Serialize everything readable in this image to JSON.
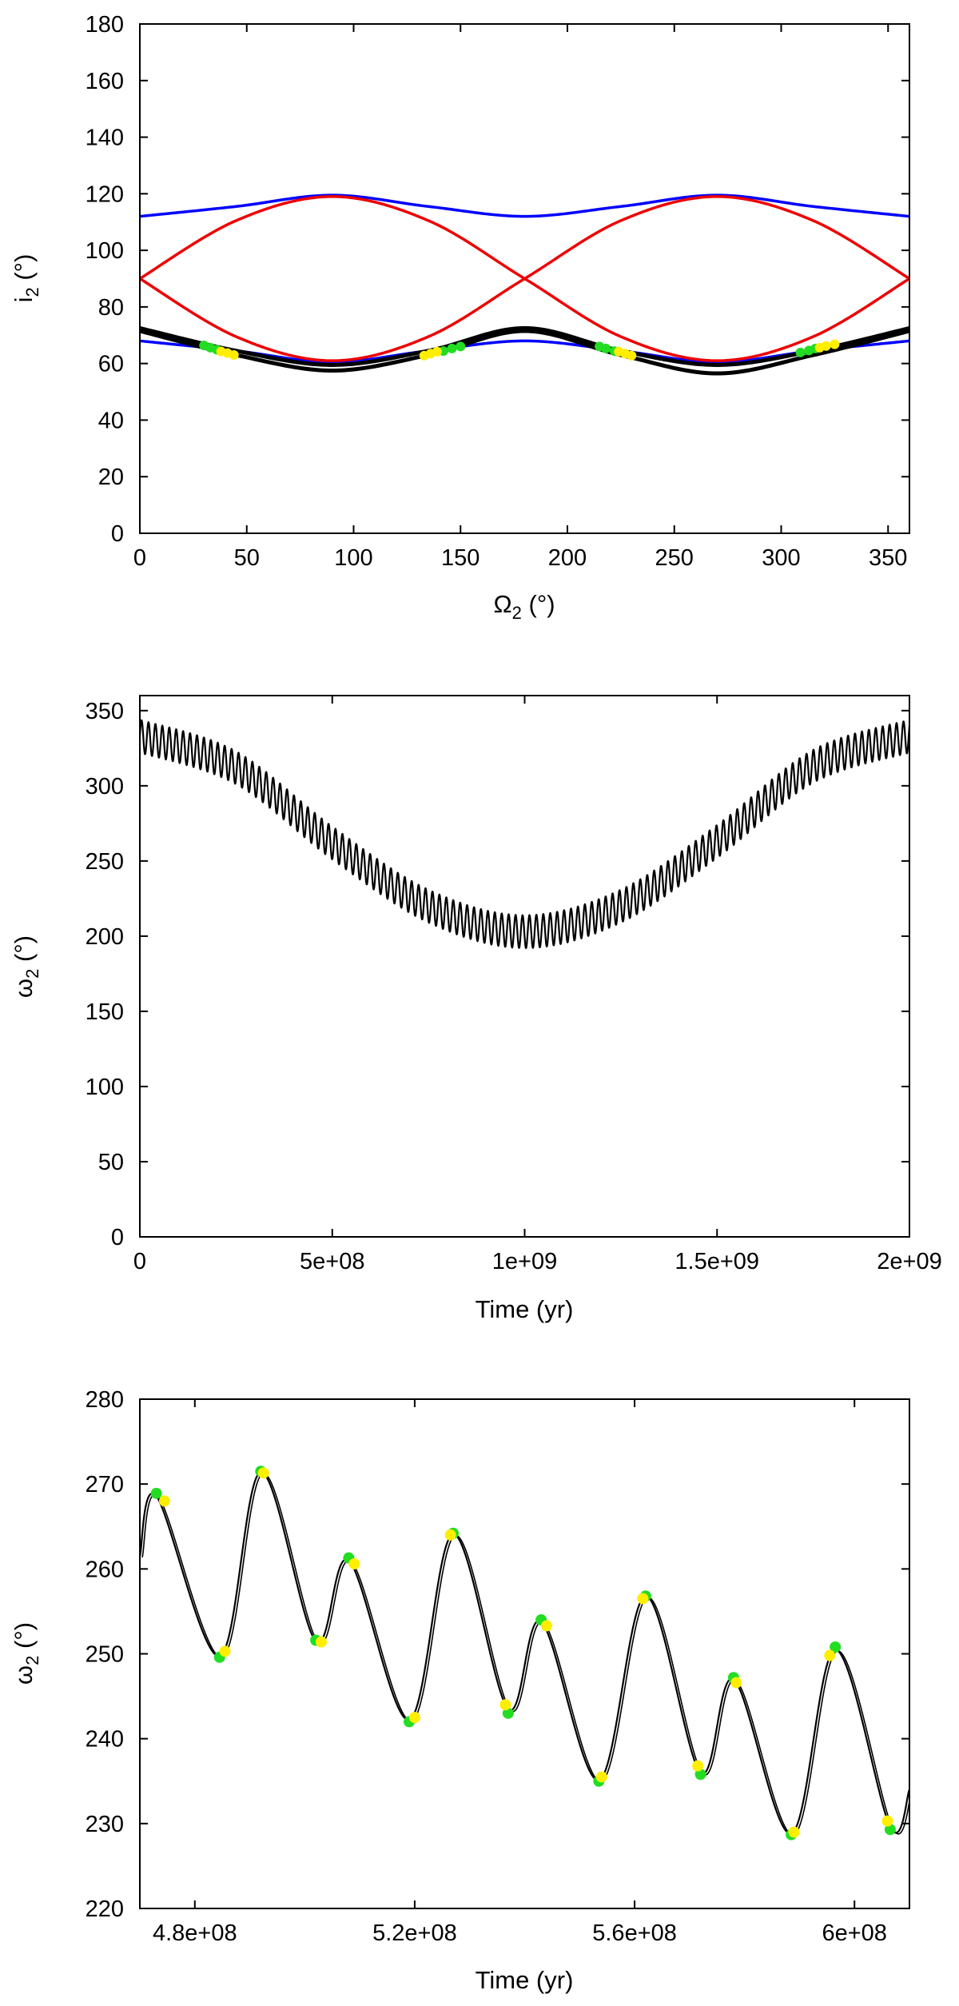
{
  "colors": {
    "blue": "#0000ff",
    "red": "#ee0000",
    "black": "#000000",
    "yellow": "#ffee00",
    "green": "#22dd22"
  },
  "chart_data": [
    {
      "type": "line",
      "xlabel": "Ω",
      "xlabel_sub": "2",
      "xlabel_unit": "(°)",
      "ylabel": "i",
      "ylabel_sub": "2",
      "ylabel_unit": "(°)",
      "xlim": [
        0,
        360
      ],
      "ylim": [
        0,
        180
      ],
      "xticks": [
        0,
        50,
        100,
        150,
        200,
        250,
        300,
        350
      ],
      "yticks": [
        0,
        20,
        40,
        60,
        80,
        100,
        120,
        140,
        160,
        180
      ],
      "grid": false,
      "series": [
        {
          "color": "blue",
          "style": "upper-boundary",
          "x": [
            0,
            45,
            90,
            135,
            180,
            225,
            270,
            315,
            360
          ],
          "y": [
            112,
            115.5,
            119.5,
            115.5,
            112,
            115.5,
            119.5,
            115.5,
            112
          ]
        },
        {
          "color": "blue",
          "style": "lower-boundary",
          "x": [
            0,
            45,
            90,
            135,
            180,
            225,
            270,
            315,
            360
          ],
          "y": [
            68,
            64.5,
            60.5,
            64.5,
            68,
            64.5,
            60.5,
            64.5,
            68
          ]
        },
        {
          "color": "red",
          "style": "separatrix-a",
          "x": [
            0,
            45,
            90,
            135,
            180,
            225,
            270,
            315,
            360
          ],
          "y": [
            90,
            110.5,
            119,
            110.5,
            90,
            69.5,
            61,
            69.5,
            90
          ]
        },
        {
          "color": "red",
          "style": "separatrix-b",
          "x": [
            0,
            45,
            90,
            135,
            180,
            225,
            270,
            315,
            360
          ],
          "y": [
            90,
            69.5,
            61,
            69.5,
            90,
            110.5,
            119,
            110.5,
            90
          ]
        },
        {
          "color": "black",
          "style": "orbit-outer",
          "x": [
            0,
            45,
            90,
            135,
            180,
            225,
            270,
            315,
            360
          ],
          "y": [
            72.5,
            64.5,
            59.5,
            64.5,
            72.5,
            64.5,
            59.5,
            64.5,
            72.5
          ]
        },
        {
          "color": "black",
          "style": "orbit-inner",
          "x": [
            0,
            45,
            90,
            135,
            180,
            225,
            270,
            315,
            360
          ],
          "y": [
            71.5,
            63,
            57.5,
            63,
            71.5,
            63,
            56.5,
            63,
            71.5
          ]
        }
      ],
      "markers": [
        {
          "color": "green",
          "x": [
            30,
            33,
            36,
            142,
            146,
            150,
            215,
            218,
            222,
            309,
            313,
            316
          ],
          "y": [
            66.4,
            65.6,
            64.9,
            64.4,
            65.3,
            66.0,
            66.0,
            65.3,
            64.4,
            63.9,
            64.6,
            65.3
          ]
        },
        {
          "color": "yellow",
          "x": [
            38,
            41,
            44,
            133,
            136,
            139,
            224,
            227,
            230,
            318,
            321,
            325
          ],
          "y": [
            64.3,
            63.7,
            63.0,
            62.8,
            63.5,
            64.2,
            64.2,
            63.5,
            62.8,
            65.6,
            66.2,
            66.8
          ]
        }
      ]
    },
    {
      "type": "line",
      "xlabel": "Time (yr)",
      "ylabel": "ω",
      "ylabel_sub": "2",
      "ylabel_unit": "(°)",
      "xlim": [
        0,
        2000000000.0
      ],
      "ylim": [
        0,
        360
      ],
      "xticks": [
        0,
        500000000.0,
        1000000000.0,
        1500000000.0,
        2000000000.0
      ],
      "xtick_labels": [
        "0",
        "5e+08",
        "1e+09",
        "1.5e+09",
        "2e+09"
      ],
      "yticks": [
        0,
        50,
        100,
        150,
        200,
        250,
        300,
        350
      ],
      "grid": false,
      "series": [
        {
          "color": "black",
          "style": "oscillating",
          "x": [
            0,
            250000000.0,
            500000000.0,
            750000000.0,
            1000000000.0,
            1250000000.0,
            1500000000.0,
            1750000000.0,
            2000000000.0
          ],
          "y": [
            333,
            312,
            262,
            220,
            203,
            220,
            263,
            313,
            333
          ],
          "oscillation_amplitude": 11,
          "oscillation_period_yr": 18000000.0
        }
      ]
    },
    {
      "type": "line",
      "xlabel": "Time (yr)",
      "ylabel": "ω",
      "ylabel_sub": "2",
      "ylabel_unit": "(°)",
      "xlim": [
        470000000.0,
        610000000.0
      ],
      "ylim": [
        220,
        280
      ],
      "xticks": [
        480000000.0,
        520000000.0,
        560000000.0,
        600000000.0
      ],
      "xtick_labels": [
        "4.8e+08",
        "5.2e+08",
        "5.6e+08",
        "6e+08"
      ],
      "yticks": [
        220,
        230,
        240,
        250,
        260,
        270,
        280
      ],
      "grid": false,
      "series": [
        {
          "color": "black",
          "style": "oscillating",
          "x": [
            470000000.0,
            473000000.0,
            484500000.0,
            492000000.0,
            502000000.0,
            508000000.0,
            519000000.0,
            527000000.0,
            537000000.0,
            543000000.0,
            553500000.0,
            562000000.0,
            572000000.0,
            578000000.0,
            588500000.0,
            596500000.0,
            606500000.0,
            610000000.0
          ],
          "y": [
            261.5,
            268.6,
            249.7,
            271.4,
            251.5,
            261.0,
            242.2,
            264.1,
            243.5,
            253.8,
            235.1,
            256.8,
            236.0,
            247.0,
            228.8,
            250.5,
            229.6,
            234.0
          ]
        }
      ],
      "markers": [
        {
          "color": "green",
          "x": [
            473000000.0,
            484500000.0,
            492000000.0,
            502000000.0,
            508000000.0,
            519000000.0,
            527000000.0,
            537000000.0,
            543000000.0,
            553500000.0,
            562000000.0,
            572000000.0,
            578000000.0,
            588500000.0,
            596500000.0,
            606500000.0
          ],
          "y": [
            268.9,
            249.6,
            271.5,
            251.6,
            261.3,
            242.0,
            264.2,
            243.0,
            254.0,
            235.0,
            256.8,
            235.8,
            247.2,
            228.7,
            250.8,
            229.3
          ]
        },
        {
          "color": "yellow",
          "x": [
            474500000.0,
            485500000.0,
            492500000.0,
            503000000.0,
            509000000.0,
            520000000.0,
            526500000.0,
            536500000.0,
            544000000.0,
            554000000.0,
            561500000.0,
            571500000.0,
            578500000.0,
            589000000.0,
            595500000.0,
            606000000.0
          ],
          "y": [
            268.0,
            250.3,
            271.3,
            251.4,
            260.6,
            242.5,
            264.0,
            244.0,
            253.3,
            235.5,
            256.5,
            236.8,
            246.6,
            229.0,
            249.8,
            230.3
          ]
        }
      ]
    }
  ]
}
